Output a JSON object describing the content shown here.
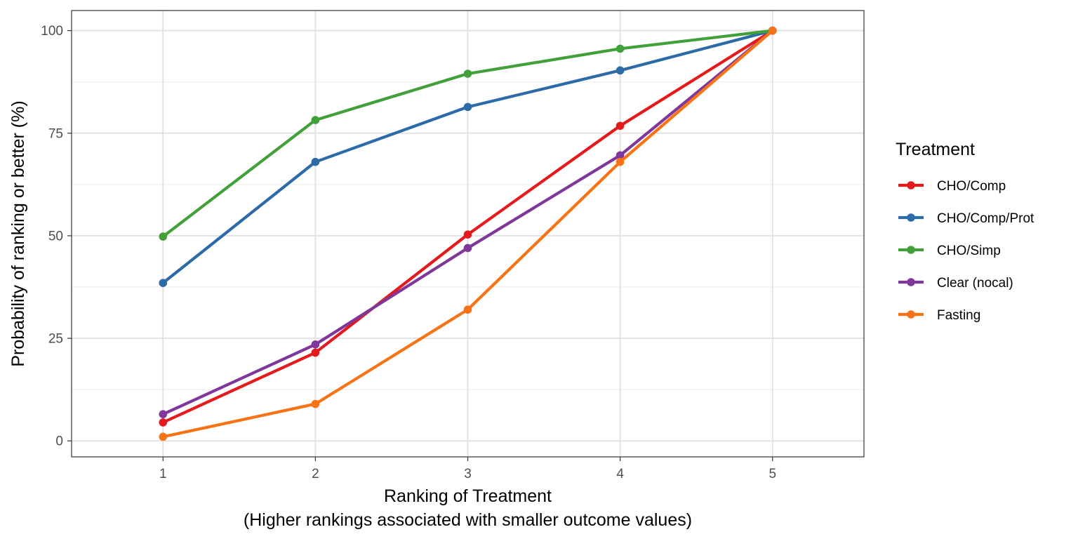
{
  "chart_data": {
    "type": "line",
    "xlabel": "Ranking of Treatment",
    "xlabel_line2": "(Higher rankings associated with smaller outcome values)",
    "ylabel": "Probability of ranking or better (%)",
    "x": [
      1,
      2,
      3,
      4,
      5
    ],
    "x_ticks": [
      "1",
      "2",
      "3",
      "4",
      "5"
    ],
    "y_ticks": [
      "0",
      "25",
      "50",
      "75",
      "100"
    ],
    "xlim": [
      0.4,
      5.6
    ],
    "ylim": [
      -3.9,
      104.9
    ],
    "grid": true,
    "legend_position": "right",
    "legend_title": "Treatment",
    "series": [
      {
        "name": "CHO/Comp",
        "color": "#e41a1c",
        "values": [
          4.5,
          21.5,
          50.3,
          76.8,
          100
        ]
      },
      {
        "name": "CHO/Comp/Prot",
        "color": "#2c6aa8",
        "values": [
          38.5,
          68.0,
          81.4,
          90.3,
          100
        ]
      },
      {
        "name": "CHO/Simp",
        "color": "#41a03a",
        "values": [
          49.8,
          78.2,
          89.5,
          95.6,
          100
        ]
      },
      {
        "name": "Clear (nocal)",
        "color": "#80379a",
        "values": [
          6.5,
          23.5,
          47.0,
          69.6,
          100
        ]
      },
      {
        "name": "Fasting",
        "color": "#f77315",
        "values": [
          1.0,
          9.0,
          32.0,
          68.0,
          100
        ]
      }
    ]
  }
}
